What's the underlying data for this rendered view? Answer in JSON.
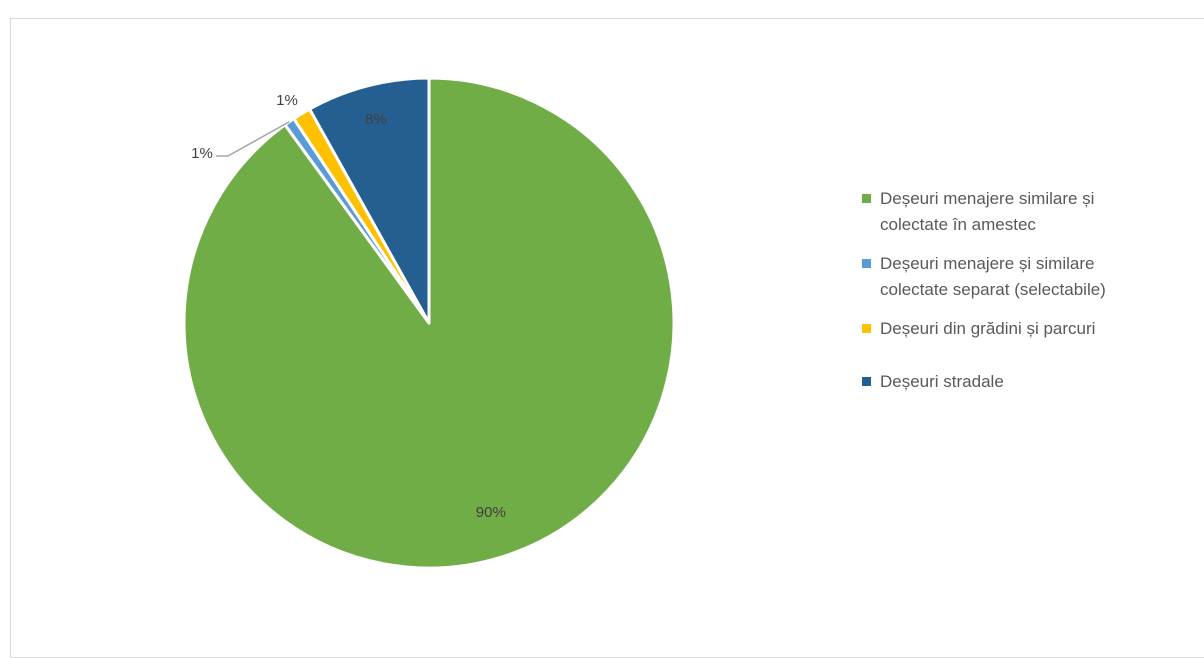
{
  "title_fragment": "",
  "chart_data": {
    "type": "pie",
    "title": "",
    "categories": [
      "Deșeuri menajere similare și colectate în amestec",
      "Deșeuri menajere și similare colectate separat (selectabile)",
      "Deșeuri din grădini și parcuri",
      "Deșeuri stradale"
    ],
    "legend_lines": [
      [
        "Deșeuri menajere similare și",
        "colectate în amestec"
      ],
      [
        "Deșeuri menajere și similare",
        "colectate separat (selectabile)"
      ],
      [
        "Deșeuri din grădini și parcuri"
      ],
      [
        "Deșeuri stradale"
      ]
    ],
    "values": [
      90,
      0.7,
      1.2,
      8.1
    ],
    "labels": [
      "90%",
      "1%",
      "1%",
      "8%"
    ],
    "colors": [
      "#70ad47",
      "#5b9bd5",
      "#ffc000",
      "#255e91"
    ],
    "legend_position": "right",
    "start_angle_deg": 0,
    "direction": "clockwise"
  }
}
